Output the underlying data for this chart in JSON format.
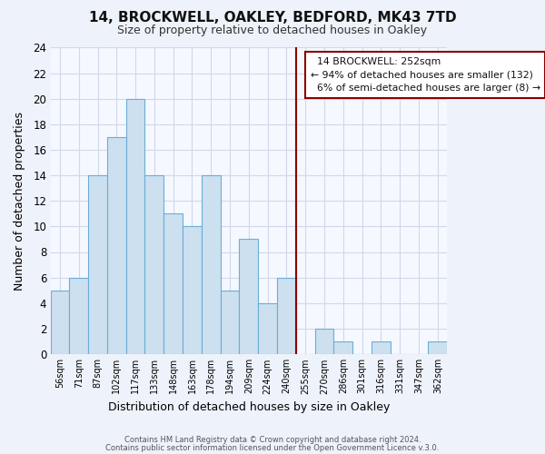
{
  "title": "14, BROCKWELL, OAKLEY, BEDFORD, MK43 7TD",
  "subtitle": "Size of property relative to detached houses in Oakley",
  "xlabel": "Distribution of detached houses by size in Oakley",
  "ylabel": "Number of detached properties",
  "bar_labels": [
    "56sqm",
    "71sqm",
    "87sqm",
    "102sqm",
    "117sqm",
    "133sqm",
    "148sqm",
    "163sqm",
    "178sqm",
    "194sqm",
    "209sqm",
    "224sqm",
    "240sqm",
    "255sqm",
    "270sqm",
    "286sqm",
    "301sqm",
    "316sqm",
    "331sqm",
    "347sqm",
    "362sqm"
  ],
  "bar_values": [
    5,
    6,
    14,
    17,
    20,
    14,
    11,
    10,
    14,
    5,
    9,
    4,
    6,
    0,
    2,
    1,
    0,
    1,
    0,
    0,
    1
  ],
  "bar_color": "#cce0f0",
  "bar_edgecolor": "#6baed6",
  "annotation_title": "14 BROCKWELL: 252sqm",
  "annotation_line1": "← 94% of detached houses are smaller (132)",
  "annotation_line2": "6% of semi-detached houses are larger (8) →",
  "annotation_box_edgecolor": "#8b0000",
  "ylim": [
    0,
    24
  ],
  "yticks": [
    0,
    2,
    4,
    6,
    8,
    10,
    12,
    14,
    16,
    18,
    20,
    22,
    24
  ],
  "footer1": "Contains HM Land Registry data © Crown copyright and database right 2024.",
  "footer2": "Contains public sector information licensed under the Open Government Licence v.3.0.",
  "grid_color": "#d0d8e8",
  "background_color": "#eef2fa",
  "plot_bg_color": "#f5f8ff"
}
